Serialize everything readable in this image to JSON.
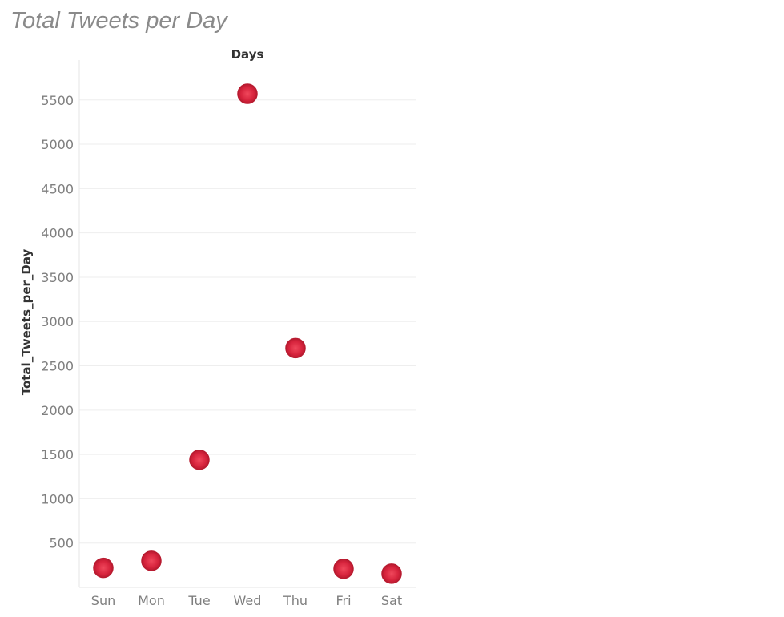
{
  "title": "Total Tweets per Day",
  "chart_data": {
    "type": "scatter",
    "title": "Total Tweets per Day",
    "xlabel": "Days",
    "ylabel": "Total_Tweets_per_Day",
    "categories": [
      "Sun",
      "Mon",
      "Tue",
      "Wed",
      "Thu",
      "Fri",
      "Sat"
    ],
    "values": [
      220,
      300,
      1440,
      5570,
      2700,
      210,
      155
    ],
    "yticks": [
      500,
      1000,
      1500,
      2000,
      2500,
      3000,
      3500,
      4000,
      4500,
      5000,
      5500
    ],
    "ylim": [
      0,
      5950
    ],
    "grid": true,
    "marker_color": "#d6233c",
    "marker_edge_color": "#b81b30"
  }
}
